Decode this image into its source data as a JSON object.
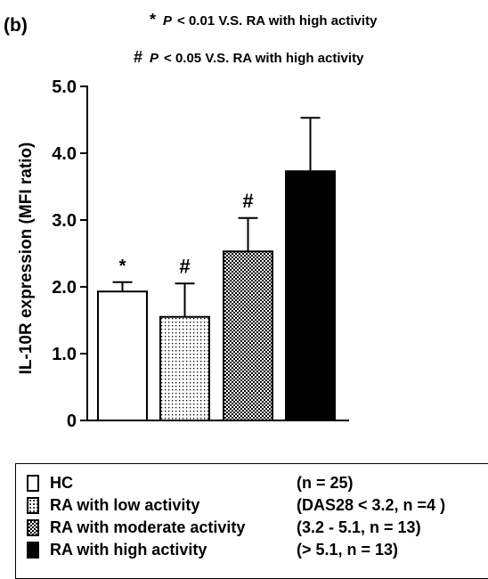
{
  "chart_data": {
    "type": "bar",
    "panel_label": "(b)",
    "title": "",
    "xlabel": "",
    "ylabel": "IL-10R expression (MFI ratio)",
    "ylim": [
      0,
      5.0
    ],
    "yticks": [
      "0",
      "1.0",
      "2.0",
      "3.0",
      "4.0",
      "5.0"
    ],
    "ytick_values": [
      0,
      1.0,
      2.0,
      3.0,
      4.0,
      5.0
    ],
    "categories": [
      "HC",
      "RA with low activity",
      "RA with moderate activity",
      "RA with high activity"
    ],
    "values": [
      1.93,
      1.55,
      2.53,
      3.73
    ],
    "errors": [
      0.14,
      0.5,
      0.5,
      0.8
    ],
    "significance_marks": [
      "*",
      "#",
      "#",
      ""
    ],
    "annotations": [
      {
        "symbol": "*",
        "p": "P",
        "text": "< 0.01 V.S. RA with high activity"
      },
      {
        "symbol": "#",
        "p": "P",
        "text": "< 0.05 V.S. RA with high activity"
      }
    ],
    "legend": [
      {
        "label": "HC",
        "note": "(n = 25)",
        "fill": "white"
      },
      {
        "label": "RA with low activity",
        "note": "(DAS28 < 3.2, n =4 )",
        "fill": "dots"
      },
      {
        "label": "RA with moderate activity",
        "note": "(3.2 - 5.1, n = 13)",
        "fill": "checker"
      },
      {
        "label": "RA with high activity",
        "note": "(> 5.1, n = 13)",
        "fill": "black"
      }
    ],
    "grid": false,
    "legend_placement": "bottom"
  }
}
